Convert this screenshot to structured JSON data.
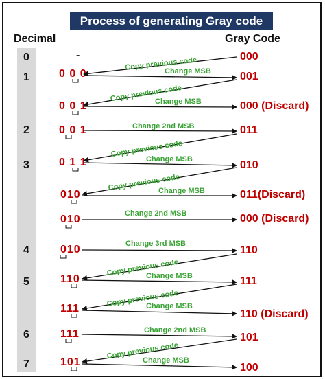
{
  "title": "Process of generating Gray code",
  "header_decimal": "Decimal",
  "header_gray": "Gray Code",
  "rows": [
    {
      "decimal": "0",
      "source": "-",
      "gray": "000"
    },
    {
      "decimal": "1",
      "source": "0 0 0",
      "gray": "001"
    },
    {
      "decimal": "",
      "source": "0 0 1",
      "gray": "000 (Discard)"
    },
    {
      "decimal": "2",
      "source": "0 0 1",
      "gray": "011"
    },
    {
      "decimal": "3",
      "source": "0 1 1",
      "gray": "010"
    },
    {
      "decimal": "",
      "source": "010",
      "gray": "011(Discard)"
    },
    {
      "decimal": "",
      "source": "010",
      "gray": "000 (Discard)"
    },
    {
      "decimal": "4",
      "source": "010",
      "gray": "110"
    },
    {
      "decimal": "5",
      "source": "110",
      "gray": "111"
    },
    {
      "decimal": "",
      "source": "111",
      "gray": "110 (Discard)"
    },
    {
      "decimal": "6",
      "source": "111",
      "gray": "101"
    },
    {
      "decimal": "7",
      "source": "101",
      "gray": "100"
    }
  ],
  "labels": {
    "copy": "Copy previous code",
    "change_msb": "Change MSB",
    "change_2nd": "Change 2nd MSB",
    "change_3rd": "Change 3rd MSB"
  },
  "colors": {
    "title_bg": "#1f3864",
    "red": "#c00000",
    "green": "#3aa335",
    "strip": "#d9d9d9"
  }
}
